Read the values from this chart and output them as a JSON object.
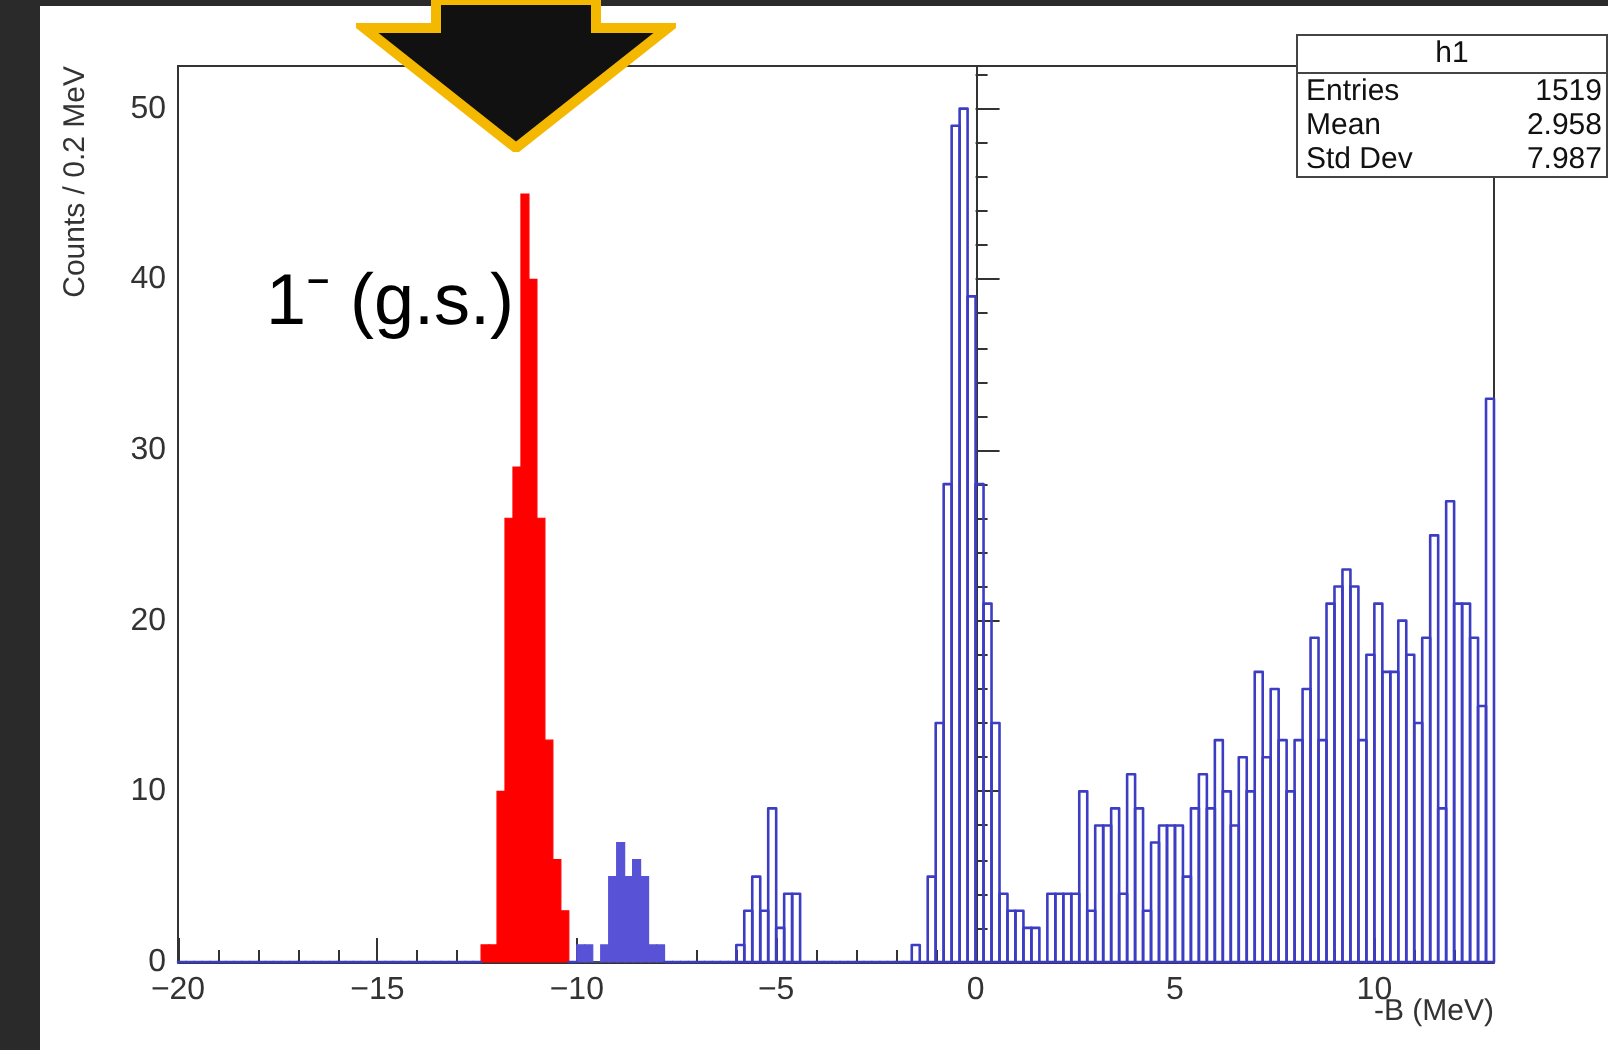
{
  "chart_data": {
    "type": "histogram",
    "xlabel": "-B (MeV)",
    "ylabel": "Counts / 0.2 MeV",
    "annotations": [
      "1⁻ (g.s.)",
      "h1",
      "Entries",
      "1519",
      "Mean",
      "2.958",
      "Std Dev",
      "7.987"
    ],
    "bins": [
      -20,
      -19.8,
      -19.6,
      -19.4,
      -19.2,
      -19,
      -18.8,
      -18.6,
      -18.4,
      -18.2,
      -18,
      -17.8,
      -17.6,
      -17.4,
      -17.2,
      -17,
      -16.8,
      -16.6,
      -16.4,
      -16.2,
      -16,
      -15.8,
      -15.6,
      -15.4,
      -15.2,
      -15,
      -14.8,
      -14.6,
      -14.4,
      -14.2,
      -14,
      -13.8,
      -13.6,
      -13.4,
      -13.2,
      -13,
      -12.8,
      -12.6,
      -12.4,
      -12.2,
      -12,
      -11.8,
      -11.6,
      -11.4,
      -11.2,
      -11,
      -10.8,
      -10.6,
      -10.4,
      -10.2,
      -10,
      -9.8,
      -9.6,
      -9.4,
      -9.2,
      -9,
      -8.8,
      -8.6,
      -8.4,
      -8.2,
      -8,
      -7.8,
      -7.6,
      -7.4,
      -7.2,
      -7,
      -6.8,
      -6.6,
      -6.4,
      -6.2,
      -6,
      -5.8,
      -5.6,
      -5.4,
      -5.2,
      -5,
      -4.8,
      -4.6,
      -4.4,
      -4.2,
      -4,
      -3.8,
      -3.6,
      -3.4,
      -3.2,
      -3,
      -2.8,
      -2.6,
      -2.4,
      -2.2,
      -2,
      -1.8,
      -1.6,
      -1.4,
      -1.2,
      -1,
      -0.8,
      -0.6,
      -0.4,
      -0.2,
      0,
      0.2,
      0.4,
      0.6,
      0.8,
      1,
      1.2,
      1.4,
      1.6,
      1.8,
      2,
      2.2,
      2.4,
      2.6,
      2.8,
      3,
      3.2,
      3.4,
      3.6,
      3.8,
      4,
      4.2,
      4.4,
      4.6,
      4.8,
      5,
      5.2,
      5.4,
      5.6,
      5.8,
      6,
      6.2,
      6.4,
      6.6,
      6.8,
      7,
      7.2,
      7.4,
      7.6,
      7.8,
      8,
      8.2,
      8.4,
      8.6,
      8.8,
      9,
      9.2,
      9.4,
      9.6,
      9.8,
      10,
      10.2,
      10.4,
      10.6,
      10.8,
      11,
      11.2,
      11.4,
      11.6,
      11.8,
      12,
      12.2,
      12.4,
      12.6,
      12.8,
      13
    ],
    "series": [
      {
        "color": "#ff0000",
        "values": [
          null,
          null,
          null,
          null,
          null,
          null,
          null,
          null,
          null,
          null,
          null,
          null,
          null,
          null,
          null,
          null,
          null,
          null,
          null,
          null,
          null,
          null,
          null,
          null,
          null,
          null,
          null,
          null,
          null,
          null,
          null,
          null,
          null,
          null,
          null,
          null,
          null,
          null,
          1,
          1,
          10,
          26,
          29,
          45,
          40,
          26,
          13,
          6,
          3,
          null,
          null,
          null,
          null,
          null,
          null,
          null,
          null,
          null,
          null,
          null,
          null,
          null,
          null,
          null,
          null,
          null,
          null,
          null,
          null,
          null,
          null,
          null,
          null,
          null,
          null,
          null,
          null,
          null,
          null,
          null,
          null,
          null,
          null,
          null,
          null,
          null,
          null,
          null,
          null,
          null,
          null,
          null,
          null,
          null,
          null,
          null,
          null,
          null,
          null,
          null,
          null,
          null,
          null,
          null,
          null,
          null,
          null,
          null,
          null,
          null,
          null,
          null,
          null,
          null,
          null,
          null,
          null,
          null,
          null,
          null,
          null,
          null,
          null,
          null,
          null,
          null,
          null,
          null,
          null,
          null,
          null,
          null,
          null,
          null,
          null,
          null,
          null,
          null,
          null,
          null,
          null,
          null,
          null,
          null,
          null,
          null,
          null,
          null,
          null,
          null,
          null,
          null,
          null,
          null,
          null,
          null,
          null,
          null,
          null,
          null,
          null,
          null,
          null,
          null,
          null
        ]
      },
      {
        "color": "#5853d6",
        "values": [
          null,
          null,
          null,
          null,
          null,
          null,
          null,
          null,
          null,
          null,
          null,
          null,
          null,
          null,
          null,
          null,
          null,
          null,
          null,
          null,
          null,
          null,
          null,
          null,
          null,
          null,
          null,
          null,
          null,
          null,
          null,
          null,
          null,
          null,
          null,
          null,
          null,
          null,
          null,
          null,
          null,
          null,
          null,
          null,
          null,
          null,
          null,
          null,
          null,
          null,
          1,
          1,
          0,
          1,
          5,
          7,
          5,
          6,
          5,
          1,
          1,
          null,
          null,
          null,
          null,
          null,
          null,
          null,
          null,
          null,
          null,
          null,
          null,
          null,
          null,
          null,
          null,
          null,
          null,
          null,
          null,
          null,
          null,
          null,
          null,
          null,
          null,
          null,
          null,
          null,
          null,
          null,
          null,
          null,
          null,
          null,
          null,
          null,
          null,
          null,
          null,
          null,
          null,
          null,
          null,
          null,
          null,
          null,
          null,
          null,
          null,
          null,
          null,
          null,
          null,
          null,
          null,
          null,
          null,
          null,
          null,
          null,
          null,
          null,
          null,
          null,
          null,
          null,
          null,
          null,
          null,
          null,
          null,
          null,
          null,
          null,
          null,
          null,
          null,
          null,
          null,
          null,
          null,
          null,
          null,
          null,
          null,
          null,
          null,
          null,
          null,
          null,
          null,
          null,
          null,
          null,
          null,
          null,
          null,
          null,
          null,
          null,
          null,
          null,
          null
        ]
      },
      {
        "color": "#3d3dc4",
        "values": [
          0,
          0,
          0,
          0,
          0,
          0,
          0,
          0,
          0,
          0,
          0,
          0,
          0,
          0,
          0,
          0,
          0,
          0,
          0,
          0,
          0,
          0,
          0,
          0,
          0,
          0,
          0,
          0,
          0,
          0,
          0,
          0,
          0,
          0,
          0,
          0,
          0,
          0,
          null,
          null,
          null,
          null,
          null,
          null,
          null,
          null,
          null,
          null,
          null,
          0,
          null,
          null,
          null,
          null,
          null,
          null,
          null,
          null,
          null,
          null,
          null,
          0,
          0,
          0,
          0,
          0,
          0,
          0,
          0,
          0,
          1,
          3,
          5,
          3,
          9,
          2,
          4,
          4,
          0,
          0,
          0,
          0,
          0,
          0,
          0,
          0,
          0,
          0,
          0,
          0,
          0,
          0,
          1,
          0,
          5,
          14,
          28,
          49,
          50,
          39,
          28,
          21,
          14,
          4,
          3,
          3,
          2,
          2,
          0,
          4,
          4,
          4,
          4,
          10,
          3,
          8,
          8,
          9,
          4,
          11,
          9,
          3,
          7,
          8,
          8,
          8,
          5,
          9,
          11,
          9,
          13,
          10,
          8,
          12,
          10,
          17,
          12,
          16,
          13,
          10,
          13,
          16,
          19,
          13,
          21,
          22,
          23,
          22,
          13,
          18,
          21,
          17,
          17,
          20,
          18,
          14,
          19,
          25,
          9,
          27,
          21,
          21,
          19,
          15,
          33
        ]
      }
    ],
    "xlim": [
      -20,
      13
    ],
    "xticks": [
      -20,
      -15,
      -10,
      -5,
      0,
      5,
      10
    ],
    "ylim": [
      0,
      52.5
    ],
    "yticks": [
      0,
      10,
      20,
      30,
      40,
      50
    ]
  }
}
